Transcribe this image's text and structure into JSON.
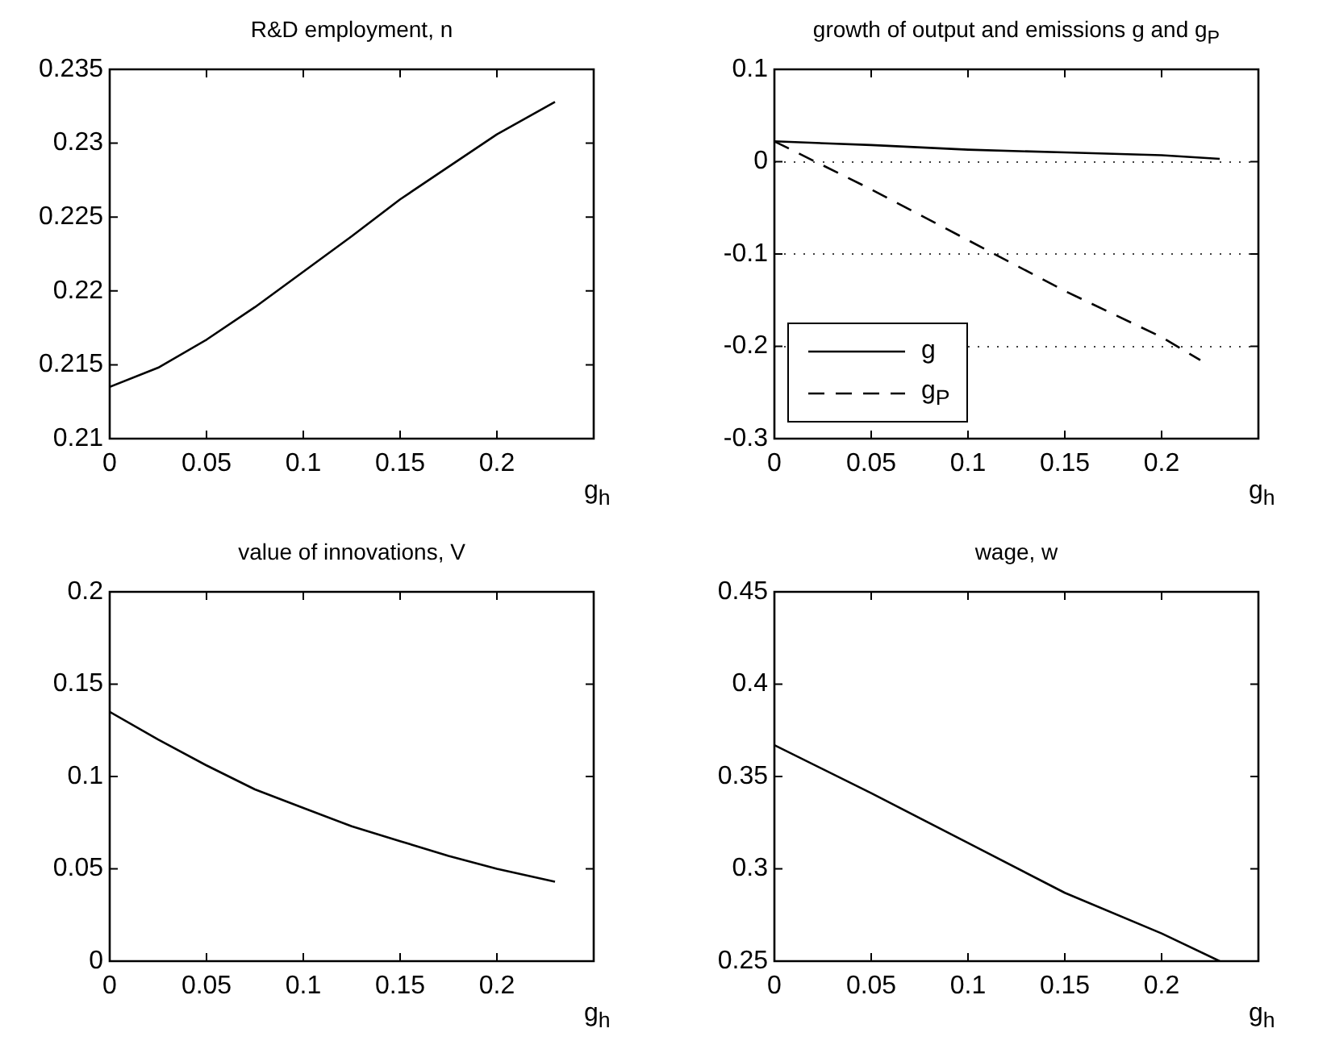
{
  "chart_data": [
    {
      "type": "line",
      "title": "R&D employment, n",
      "xlabel": "g$_{h}$",
      "xlim": [
        0,
        0.25
      ],
      "xticks": [
        0,
        0.05,
        0.1,
        0.15,
        0.2
      ],
      "ylim": [
        0.21,
        0.235
      ],
      "yticks": [
        0.21,
        0.215,
        0.22,
        0.225,
        0.23,
        0.235
      ],
      "grid": false,
      "series": [
        {
          "color": "#000000",
          "x": [
            0,
            0.025,
            0.05,
            0.075,
            0.1,
            0.125,
            0.15,
            0.175,
            0.2,
            0.23
          ],
          "values": [
            0.2135,
            0.2148,
            0.2167,
            0.2189,
            0.2213,
            0.2237,
            0.2262,
            0.2284,
            0.2306,
            0.2328
          ]
        }
      ]
    },
    {
      "type": "line",
      "title": "growth of output and emissions g and g$_{P}$",
      "xlabel": "g$_{h}$",
      "xlim": [
        0,
        0.25
      ],
      "xticks": [
        0,
        0.05,
        0.1,
        0.15,
        0.2
      ],
      "ylim": [
        -0.3,
        0.1
      ],
      "yticks": [
        -0.3,
        -0.2,
        -0.1,
        0,
        0.1
      ],
      "grid": "y",
      "legend": "bottom left",
      "series": [
        {
          "name": "g",
          "color": "#000000",
          "line_style": "solid",
          "x": [
            0,
            0.05,
            0.1,
            0.15,
            0.2,
            0.23
          ],
          "values": [
            0.022,
            0.018,
            0.013,
            0.01,
            0.007,
            0.003
          ]
        },
        {
          "name": "g$_{P}$",
          "color": "#000000",
          "line_style": "dashed",
          "x": [
            0,
            0.05,
            0.1,
            0.15,
            0.2,
            0.22
          ],
          "values": [
            0.022,
            -0.03,
            -0.085,
            -0.14,
            -0.19,
            -0.215
          ]
        }
      ]
    },
    {
      "type": "line",
      "title": "value of innovations, V",
      "xlabel": "g$_{h}$",
      "xlim": [
        0,
        0.25
      ],
      "xticks": [
        0,
        0.05,
        0.1,
        0.15,
        0.2
      ],
      "ylim": [
        0,
        0.2
      ],
      "yticks": [
        0,
        0.05,
        0.1,
        0.15,
        0.2
      ],
      "grid": false,
      "series": [
        {
          "color": "#000000",
          "x": [
            0,
            0.025,
            0.05,
            0.075,
            0.1,
            0.125,
            0.15,
            0.175,
            0.2,
            0.23
          ],
          "values": [
            0.135,
            0.12,
            0.106,
            0.093,
            0.083,
            0.073,
            0.065,
            0.057,
            0.05,
            0.043
          ]
        }
      ]
    },
    {
      "type": "line",
      "title": "wage, w",
      "xlabel": "g$_{h}$",
      "xlim": [
        0,
        0.25
      ],
      "xticks": [
        0,
        0.05,
        0.1,
        0.15,
        0.2
      ],
      "ylim": [
        0.25,
        0.45
      ],
      "yticks": [
        0.25,
        0.3,
        0.35,
        0.4,
        0.45
      ],
      "grid": false,
      "series": [
        {
          "color": "#000000",
          "x": [
            0,
            0.05,
            0.1,
            0.15,
            0.2,
            0.23
          ],
          "values": [
            0.367,
            0.341,
            0.314,
            0.287,
            0.265,
            0.25
          ]
        }
      ]
    }
  ]
}
